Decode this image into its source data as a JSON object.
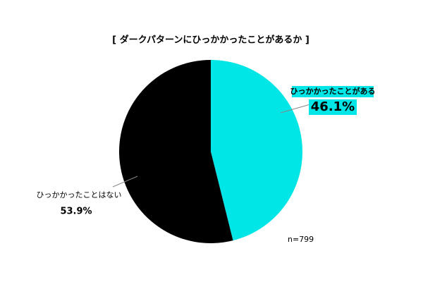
{
  "chart_data": {
    "type": "pie",
    "title": "[ ダークパターンにひっかかったことがあるか ]",
    "categories": [
      "ひっかかったことがある",
      "ひっかかったことはない"
    ],
    "values": [
      46.1,
      53.9
    ],
    "value_labels": [
      "46.1%",
      "53.9%"
    ],
    "colors": [
      "#00e5e5",
      "#000000"
    ],
    "note": "n=799"
  }
}
